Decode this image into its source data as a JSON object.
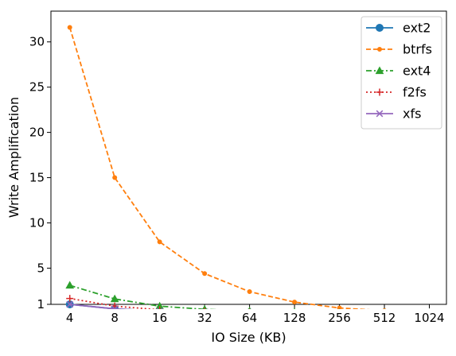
{
  "chart_data": {
    "type": "line",
    "title": "",
    "xlabel": "IO Size (KB)",
    "ylabel": "Write Amplification",
    "categories": [
      "4",
      "8",
      "16",
      "32",
      "64",
      "128",
      "256",
      "512",
      "1024"
    ],
    "ylim": [
      1,
      33.4
    ],
    "yticks": [
      1,
      5,
      10,
      15,
      20,
      25,
      30
    ],
    "grid": false,
    "legend_position": "top-right",
    "series": [
      {
        "name": "ext2",
        "values": [
          1.0,
          0.5,
          0.25,
          0.15,
          0.1,
          0.05,
          0.05,
          0.02,
          0.02
        ],
        "color": "#1f77b4",
        "linestyle": "solid",
        "marker": "circle"
      },
      {
        "name": "btrfs",
        "values": [
          31.6,
          15.0,
          7.9,
          4.4,
          2.4,
          1.25,
          0.6,
          0.3,
          0.15
        ],
        "color": "#ff7f0e",
        "linestyle": "dashed",
        "marker": "point"
      },
      {
        "name": "ext4",
        "values": [
          3.1,
          1.6,
          0.8,
          0.45,
          0.25,
          0.15,
          0.08,
          0.05,
          0.03
        ],
        "color": "#2ca02c",
        "linestyle": "dashdot",
        "marker": "triangle"
      },
      {
        "name": "f2fs",
        "values": [
          1.65,
          0.8,
          0.4,
          0.22,
          0.12,
          0.07,
          0.04,
          0.02,
          0.02
        ],
        "color": "#d62728",
        "linestyle": "dotted",
        "marker": "plus"
      },
      {
        "name": "xfs",
        "values": [
          1.0,
          0.5,
          0.25,
          0.15,
          0.1,
          0.05,
          0.05,
          0.02,
          0.02
        ],
        "color": "#9467bd",
        "linestyle": "solid",
        "marker": "x"
      }
    ]
  }
}
